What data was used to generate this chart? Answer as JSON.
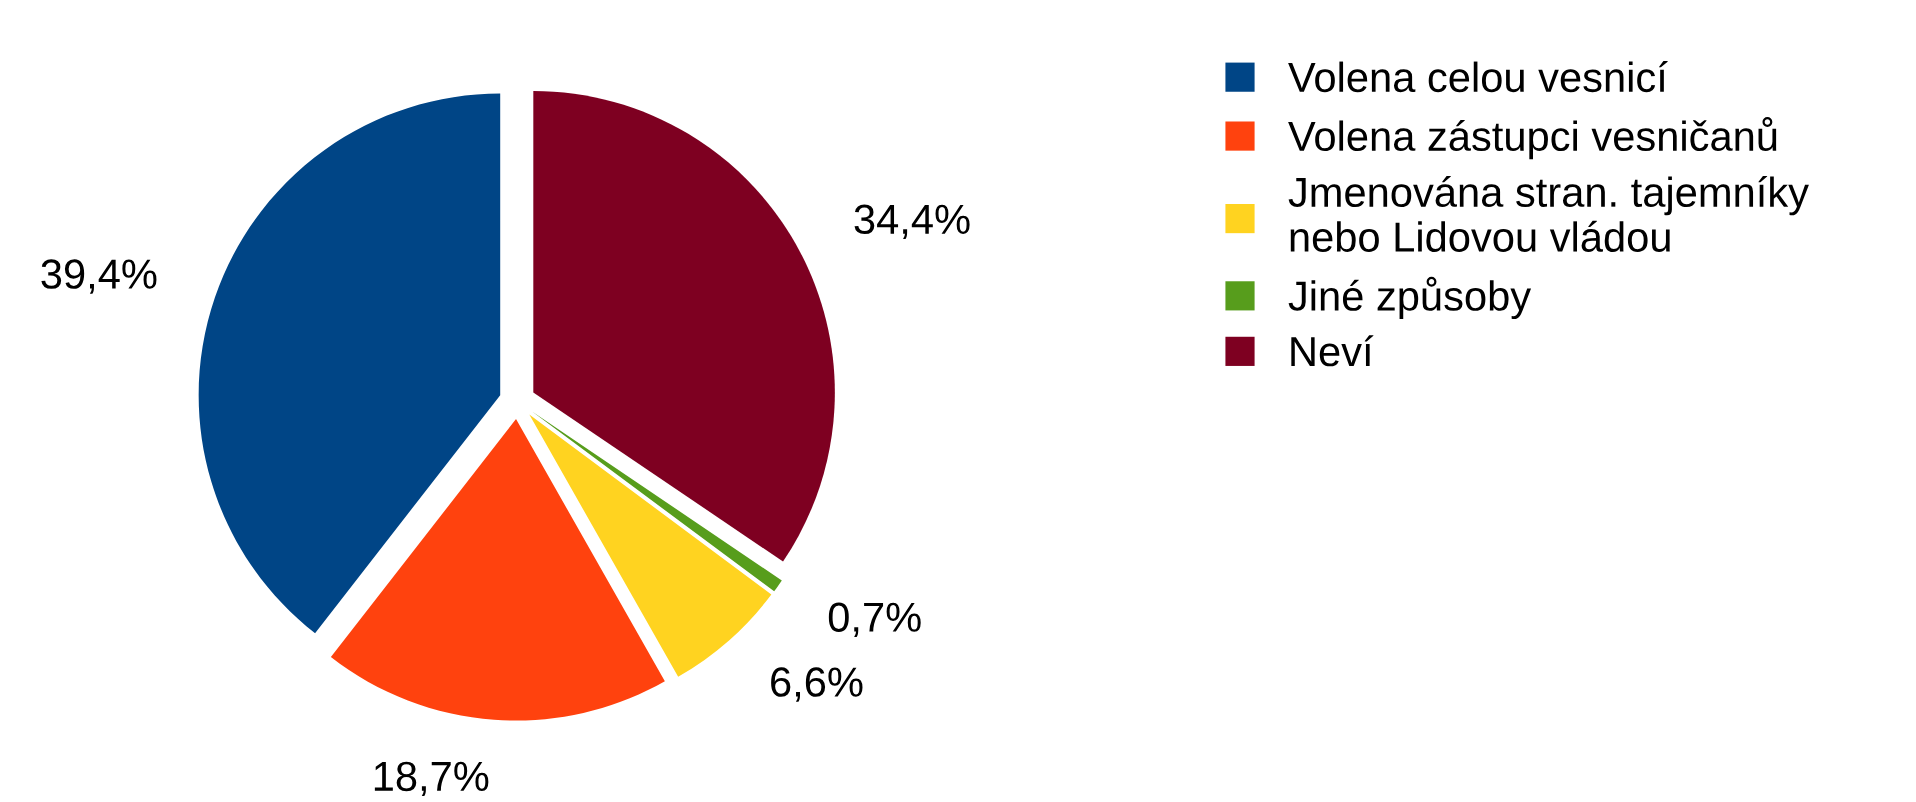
{
  "chart_data": {
    "type": "pie",
    "categories": [
      "Volena celou vesnicí",
      "Volena zástupci vesničanů",
      "Jmenována stran. tajemníky nebo Lidovou vládou",
      "Jiné způsoby",
      "Neví"
    ],
    "values": [
      39.4,
      18.7,
      6.6,
      0.7,
      34.4
    ],
    "value_labels": [
      "39,4%",
      "18,7%",
      "6,6%",
      "0,7%",
      "34,4%"
    ],
    "colors": [
      "#004586",
      "#ff420e",
      "#ffd320",
      "#579d1c",
      "#7e0021"
    ],
    "legend": "right"
  }
}
